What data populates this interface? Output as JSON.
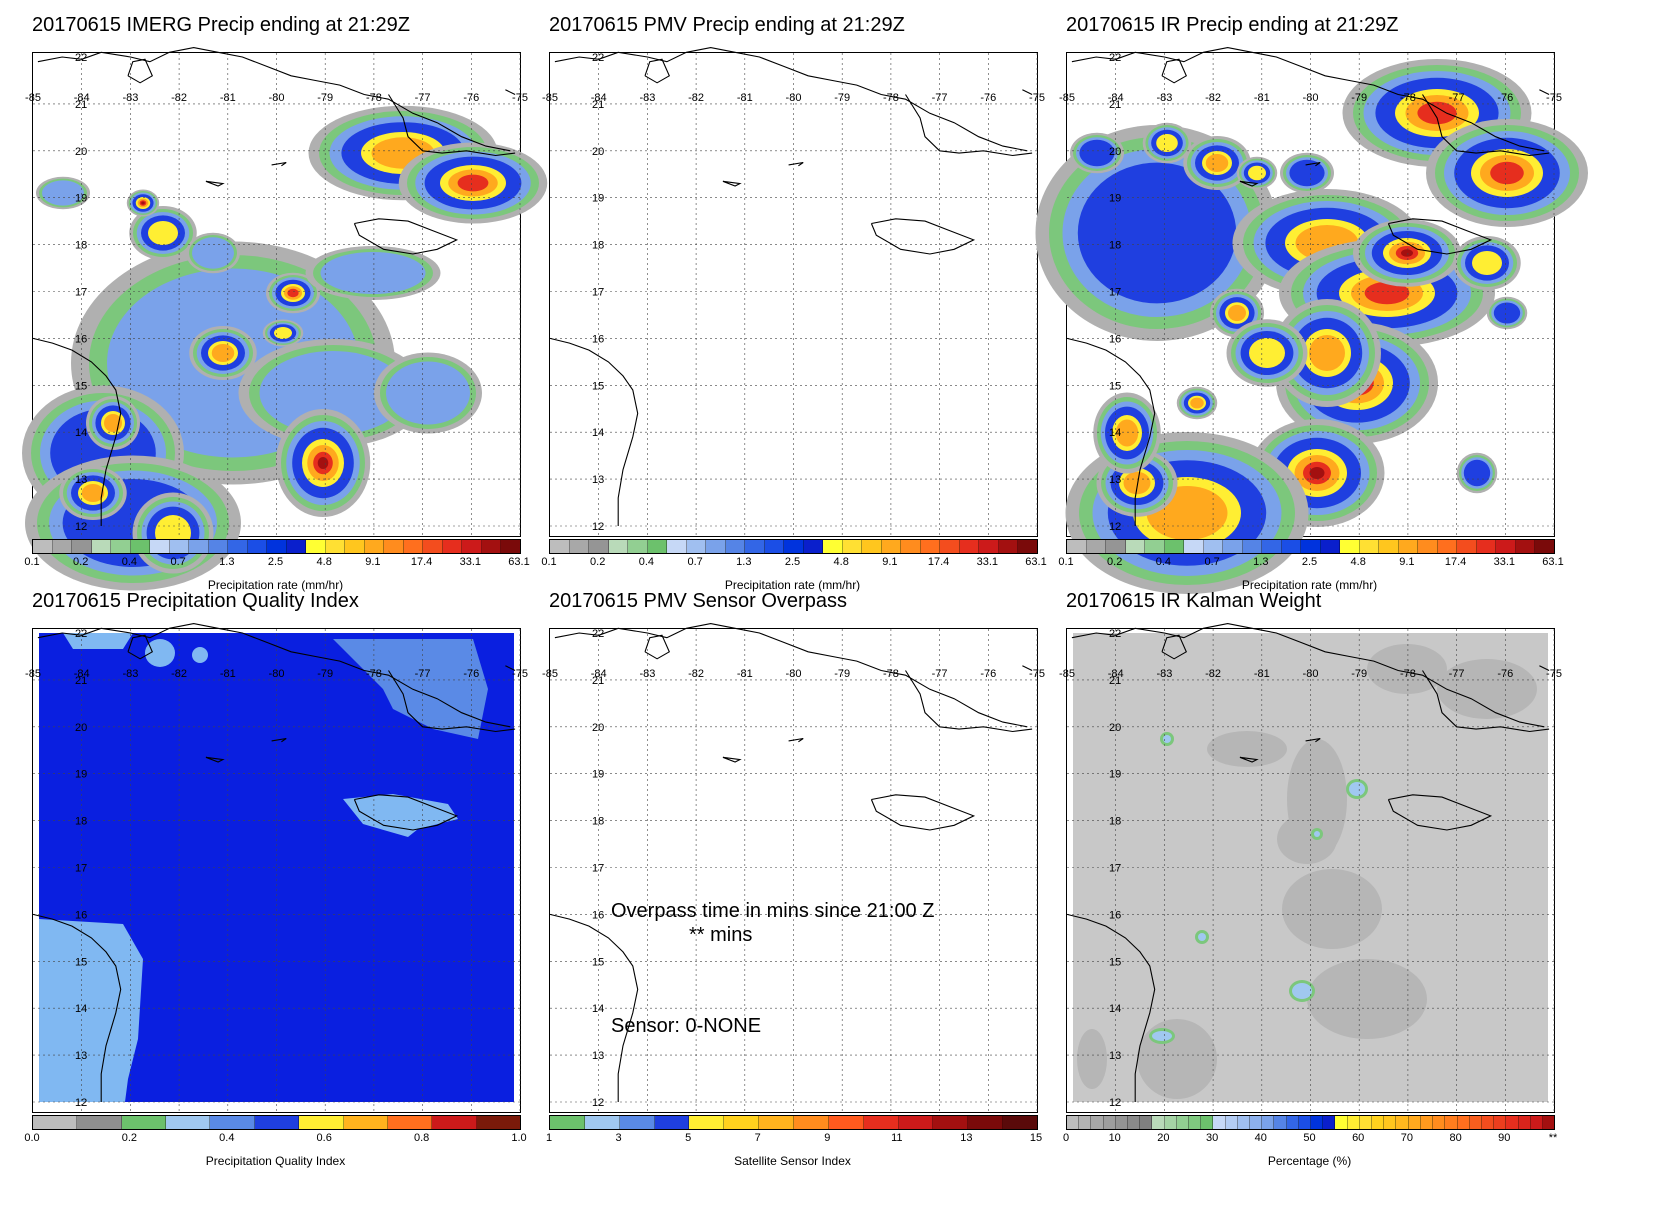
{
  "map_labels": {
    "lon": [
      "-85",
      "-84",
      "-83",
      "-82",
      "-81",
      "-80",
      "-79",
      "-78",
      "-77",
      "-76",
      "-75"
    ],
    "lat": [
      "22",
      "21",
      "20",
      "19",
      "18",
      "17",
      "16",
      "15",
      "14",
      "13",
      "12"
    ]
  },
  "panels": [
    {
      "title": "20170615 IMERG Precip ending at 21:29Z",
      "colorbar": {
        "label": "Precipitation rate (mm/hr)",
        "ticks": [
          "0.1",
          "0.2",
          "0.4",
          "0.7",
          "1.3",
          "2.5",
          "4.8",
          "9.1",
          "17.4",
          "33.1",
          "63.1"
        ],
        "colors": [
          "#bdbdbd",
          "#a8a8a8",
          "#959595",
          "#b9dab9",
          "#92cf92",
          "#6cc16c",
          "#c6d8f6",
          "#a0bff0",
          "#7aa2ea",
          "#5584e6",
          "#3366e6",
          "#1b4ee6",
          "#0033dd",
          "#0a1fcc",
          "#ffff33",
          "#ffe033",
          "#ffc61e",
          "#ffa91e",
          "#ff8c1e",
          "#ff6f1e",
          "#f34d1e",
          "#e62e1e",
          "#cc1a1a",
          "#a31010",
          "#7a0a0a"
        ]
      }
    },
    {
      "title": "20170615 PMV Precip ending at 21:29Z",
      "colorbar": {
        "label": "Precipitation rate (mm/hr)",
        "ticks": [
          "0.1",
          "0.2",
          "0.4",
          "0.7",
          "1.3",
          "2.5",
          "4.8",
          "9.1",
          "17.4",
          "33.1",
          "63.1"
        ],
        "colors": [
          "#bdbdbd",
          "#a8a8a8",
          "#959595",
          "#b9dab9",
          "#92cf92",
          "#6cc16c",
          "#c6d8f6",
          "#a0bff0",
          "#7aa2ea",
          "#5584e6",
          "#3366e6",
          "#1b4ee6",
          "#0033dd",
          "#0a1fcc",
          "#ffff33",
          "#ffe033",
          "#ffc61e",
          "#ffa91e",
          "#ff8c1e",
          "#ff6f1e",
          "#f34d1e",
          "#e62e1e",
          "#cc1a1a",
          "#a31010",
          "#7a0a0a"
        ]
      }
    },
    {
      "title": "20170615 IR Precip ending at 21:29Z",
      "colorbar": {
        "label": "Precipitation rate (mm/hr)",
        "ticks": [
          "0.1",
          "0.2",
          "0.4",
          "0.7",
          "1.3",
          "2.5",
          "4.8",
          "9.1",
          "17.4",
          "33.1",
          "63.1"
        ],
        "colors": [
          "#bdbdbd",
          "#a8a8a8",
          "#959595",
          "#b9dab9",
          "#92cf92",
          "#6cc16c",
          "#c6d8f6",
          "#a0bff0",
          "#7aa2ea",
          "#5584e6",
          "#3366e6",
          "#1b4ee6",
          "#0033dd",
          "#0a1fcc",
          "#ffff33",
          "#ffe033",
          "#ffc61e",
          "#ffa91e",
          "#ff8c1e",
          "#ff6f1e",
          "#f34d1e",
          "#e62e1e",
          "#cc1a1a",
          "#a31010",
          "#7a0a0a"
        ]
      }
    },
    {
      "title": "20170615 Precipitation Quality Index",
      "colorbar": {
        "label": "Precipitation Quality Index",
        "ticks": [
          "0.0",
          "0.2",
          "0.4",
          "0.6",
          "0.8",
          "1.0"
        ],
        "colors": [
          "#bdbdbd",
          "#8f8f8f",
          "#6cc16c",
          "#a0c8f0",
          "#5a8ae6",
          "#1f3fe0",
          "#ffee33",
          "#ffb31e",
          "#ff6f1e",
          "#cc1a1a",
          "#7a1a0a"
        ]
      }
    },
    {
      "title": "20170615 PMV Sensor Overpass",
      "colorbar": {
        "label": "Satellite Sensor Index",
        "ticks": [
          "1",
          "3",
          "5",
          "7",
          "9",
          "11",
          "13",
          "15"
        ],
        "colors": [
          "#6cc16c",
          "#a0c8f0",
          "#5a8ae6",
          "#1f3fe0",
          "#ffee33",
          "#ffd21e",
          "#ffb31e",
          "#ff8c1e",
          "#ff5a1e",
          "#e62e1e",
          "#cc1a1a",
          "#a31010",
          "#7a0a0a",
          "#5a0a0a"
        ]
      }
    },
    {
      "title": "20170615 IR Kalman Weight",
      "colorbar": {
        "label": "Percentage (%)",
        "ticks": [
          "0",
          "10",
          "20",
          "30",
          "40",
          "50",
          "60",
          "70",
          "80",
          "90",
          "**"
        ],
        "colors": [
          "#bdbdbd",
          "#b3b3b3",
          "#a8a8a8",
          "#9e9e9e",
          "#949494",
          "#8a8a8a",
          "#808080",
          "#b9dab9",
          "#a5d4a5",
          "#92cf92",
          "#7fc97f",
          "#6cc16c",
          "#c6d8f6",
          "#b3ccf3",
          "#a0bff0",
          "#8db1ed",
          "#7aa2ea",
          "#5584e6",
          "#3366e6",
          "#1b4ee6",
          "#0033dd",
          "#0a1fcc",
          "#ffff33",
          "#ffee33",
          "#ffe033",
          "#ffd21e",
          "#ffc61e",
          "#ffb81e",
          "#ffa91e",
          "#ff9a1e",
          "#ff8c1e",
          "#ff7d1e",
          "#ff6f1e",
          "#f85e1e",
          "#f34d1e",
          "#ec3e1e",
          "#e62e1e",
          "#d9241c",
          "#cc1a1a",
          "#a31010"
        ]
      }
    }
  ],
  "overpass": {
    "line1": "Overpass time in mins since 21:00 Z",
    "line2": "** mins",
    "sensor": "Sensor:   0-NONE"
  }
}
